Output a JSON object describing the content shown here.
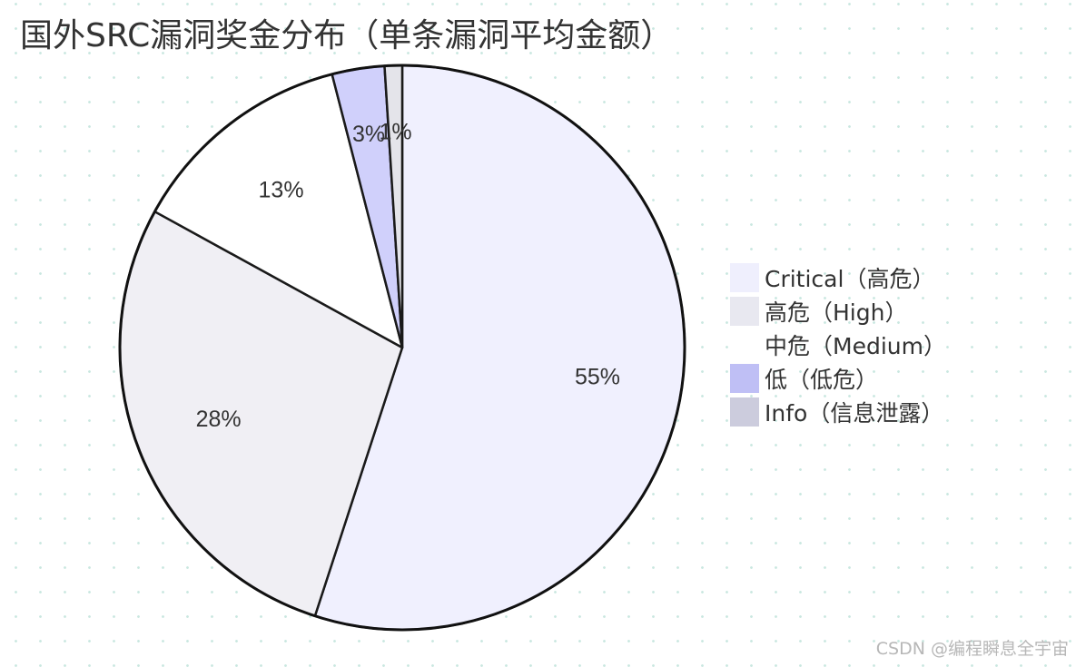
{
  "chart_data": {
    "type": "pie",
    "title": "国外SRC漏洞奖金分布（单条漏洞平均金额）",
    "categories": [
      "Critical（高危）",
      "高危（High）",
      "中危（Medium）",
      "低（低危）",
      "Info（信息泄露）"
    ],
    "values": [
      55,
      28,
      13,
      3,
      1
    ],
    "value_labels": [
      "55%",
      "28%",
      "13%",
      "3%",
      "1%"
    ],
    "colors": [
      "#f0f0fe",
      "#f0eff4",
      "#ffffff",
      "#d0d0fb",
      "#e4e4ea"
    ],
    "legend_colors": [
      "#efeffd",
      "#e8e8f0",
      "#ffffff",
      "#bfbff5",
      "#ccccdd"
    ],
    "start": "top",
    "direction": "clockwise",
    "legend_position": "right",
    "background_pattern": "dotted-grid"
  },
  "watermark": "CSDN @编程瞬息全宇宙"
}
